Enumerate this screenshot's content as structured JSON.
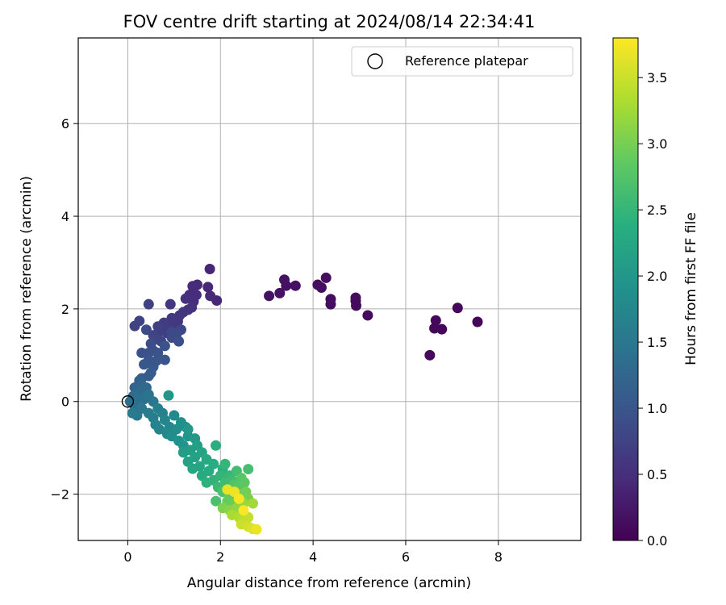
{
  "chart_data": {
    "type": "scatter",
    "title": "FOV centre drift starting at 2024/08/14 22:34:41",
    "xlabel": "Angular distance from reference (arcmin)",
    "ylabel": "Rotation from reference (arcmin)",
    "xlim": [
      -1.07,
      9.78
    ],
    "ylim": [
      -3.0,
      7.85
    ],
    "xticks": [
      0,
      2,
      4,
      6,
      8
    ],
    "yticks": [
      -2,
      0,
      2,
      4,
      6
    ],
    "xtick_labels": [
      "0",
      "2",
      "4",
      "6",
      "8"
    ],
    "ytick_labels": [
      "−2",
      "0",
      "2",
      "4",
      "6"
    ],
    "grid": true,
    "legend": {
      "placement": "top-right",
      "label": "Reference platepar"
    },
    "reference_point": {
      "x": 0,
      "y": 0
    },
    "colorbar": {
      "label": "Hours from first FF file",
      "range": [
        0,
        3.8
      ],
      "ticks": [
        0.0,
        0.5,
        1.0,
        1.5,
        2.0,
        2.5,
        3.0,
        3.5
      ],
      "tick_labels": [
        "0.0",
        "0.5",
        "1.0",
        "1.5",
        "2.0",
        "2.5",
        "3.0",
        "3.5"
      ],
      "colormap": "viridis"
    },
    "points": [
      [
        7.55,
        1.72,
        0.05
      ],
      [
        7.12,
        2.02,
        0.06
      ],
      [
        6.78,
        1.56,
        0.06
      ],
      [
        6.62,
        1.58,
        0.07
      ],
      [
        6.65,
        1.75,
        0.07
      ],
      [
        6.52,
        1.0,
        0.08
      ],
      [
        5.18,
        1.86,
        0.1
      ],
      [
        4.93,
        2.07,
        0.11
      ],
      [
        4.92,
        2.24,
        0.11
      ],
      [
        4.92,
        2.17,
        0.12
      ],
      [
        4.38,
        2.1,
        0.13
      ],
      [
        4.38,
        2.21,
        0.13
      ],
      [
        4.28,
        2.67,
        0.14
      ],
      [
        4.18,
        2.46,
        0.14
      ],
      [
        4.1,
        2.52,
        0.15
      ],
      [
        3.62,
        2.5,
        0.16
      ],
      [
        3.42,
        2.5,
        0.16
      ],
      [
        3.38,
        2.63,
        0.17
      ],
      [
        3.28,
        2.34,
        0.17
      ],
      [
        3.05,
        2.28,
        0.18
      ],
      [
        1.77,
        2.86,
        0.4
      ],
      [
        1.92,
        2.18,
        0.42
      ],
      [
        1.73,
        2.47,
        0.43
      ],
      [
        1.78,
        2.28,
        0.44
      ],
      [
        1.5,
        2.52,
        0.45
      ],
      [
        1.4,
        2.49,
        0.46
      ],
      [
        1.33,
        2.3,
        0.47
      ],
      [
        1.48,
        2.3,
        0.48
      ],
      [
        1.42,
        2.16,
        0.5
      ],
      [
        1.38,
        2.03,
        0.52
      ],
      [
        1.25,
        2.22,
        0.53
      ],
      [
        1.3,
        1.98,
        0.55
      ],
      [
        1.2,
        1.93,
        0.56
      ],
      [
        1.12,
        1.86,
        0.58
      ],
      [
        1.08,
        1.73,
        0.6
      ],
      [
        0.92,
        2.1,
        0.6
      ],
      [
        1.02,
        1.68,
        0.62
      ],
      [
        0.95,
        1.8,
        0.63
      ],
      [
        0.88,
        1.63,
        0.65
      ],
      [
        0.85,
        1.48,
        0.67
      ],
      [
        0.78,
        1.7,
        0.68
      ],
      [
        0.72,
        1.52,
        0.7
      ],
      [
        0.65,
        1.62,
        0.72
      ],
      [
        0.45,
        2.1,
        0.72
      ],
      [
        0.25,
        1.74,
        0.74
      ],
      [
        0.15,
        1.63,
        0.75
      ],
      [
        0.55,
        1.43,
        0.76
      ],
      [
        0.62,
        1.35,
        0.78
      ],
      [
        0.72,
        1.3,
        0.8
      ],
      [
        1.15,
        1.55,
        0.82
      ],
      [
        1.05,
        1.45,
        0.84
      ],
      [
        0.95,
        1.38,
        0.85
      ],
      [
        0.4,
        1.55,
        0.86
      ],
      [
        0.5,
        1.25,
        0.88
      ],
      [
        0.55,
        1.1,
        0.9
      ],
      [
        0.45,
        1.05,
        0.92
      ],
      [
        0.3,
        1.05,
        0.94
      ],
      [
        0.8,
        1.2,
        0.95
      ],
      [
        0.65,
        1.05,
        0.97
      ],
      [
        0.45,
        0.9,
        1.0
      ],
      [
        0.35,
        0.8,
        1.03
      ],
      [
        0.55,
        0.75,
        1.05
      ],
      [
        0.5,
        0.62,
        1.08
      ],
      [
        0.45,
        0.55,
        1.1
      ],
      [
        0.3,
        0.5,
        1.12
      ],
      [
        0.95,
        1.5,
        0.85
      ],
      [
        1.1,
        1.3,
        0.9
      ],
      [
        0.8,
        0.9,
        1.0
      ],
      [
        0.62,
        0.88,
        1.02
      ],
      [
        0.25,
        0.45,
        1.18
      ],
      [
        0.15,
        0.3,
        1.22
      ],
      [
        0.3,
        0.35,
        1.25
      ],
      [
        0.4,
        0.3,
        1.28
      ],
      [
        0.25,
        0.2,
        1.3
      ],
      [
        0.12,
        0.12,
        1.33
      ],
      [
        0.05,
        0.0,
        1.35
      ],
      [
        0.2,
        0.05,
        1.38
      ],
      [
        0.15,
        -0.1,
        1.4
      ],
      [
        0.35,
        0.05,
        1.42
      ],
      [
        0.45,
        0.15,
        1.45
      ],
      [
        0.55,
        0.0,
        1.47
      ],
      [
        0.3,
        -0.15,
        1.5
      ],
      [
        0.2,
        -0.3,
        1.52
      ],
      [
        0.1,
        -0.25,
        1.55
      ],
      [
        0.45,
        -0.25,
        1.57
      ],
      [
        0.55,
        -0.35,
        1.6
      ],
      [
        0.65,
        -0.15,
        1.62
      ],
      [
        0.75,
        -0.25,
        1.65
      ],
      [
        0.6,
        -0.5,
        1.68
      ],
      [
        0.68,
        -0.6,
        1.7
      ],
      [
        0.8,
        -0.4,
        1.72
      ],
      [
        0.9,
        -0.55,
        1.75
      ],
      [
        1.0,
        -0.3,
        1.77
      ],
      [
        0.85,
        -0.7,
        1.8
      ],
      [
        0.95,
        -0.75,
        1.82
      ],
      [
        1.05,
        -0.6,
        1.85
      ],
      [
        1.15,
        -0.45,
        1.87
      ],
      [
        1.25,
        -0.55,
        1.9
      ],
      [
        1.1,
        -0.85,
        1.92
      ],
      [
        1.2,
        -0.95,
        1.95
      ],
      [
        1.3,
        -0.75,
        1.97
      ],
      [
        0.88,
        0.13,
        2.0
      ],
      [
        1.3,
        -0.6,
        2.02
      ],
      [
        1.45,
        -0.8,
        2.05
      ],
      [
        1.2,
        -1.1,
        2.08
      ],
      [
        1.35,
        -1.05,
        2.1
      ],
      [
        1.5,
        -0.95,
        2.12
      ],
      [
        1.3,
        -1.3,
        2.15
      ],
      [
        1.45,
        -1.2,
        2.18
      ],
      [
        1.6,
        -1.1,
        2.2
      ],
      [
        1.4,
        -1.45,
        2.22
      ],
      [
        1.55,
        -1.4,
        2.25
      ],
      [
        1.7,
        -1.25,
        2.28
      ],
      [
        1.6,
        -1.6,
        2.3
      ],
      [
        1.75,
        -1.5,
        2.32
      ],
      [
        1.85,
        -1.35,
        2.35
      ],
      [
        1.9,
        -0.95,
        2.38
      ],
      [
        2.05,
        -1.45,
        2.4
      ],
      [
        1.7,
        -1.75,
        2.42
      ],
      [
        1.85,
        -1.7,
        2.45
      ],
      [
        2.0,
        -1.6,
        2.48
      ],
      [
        2.1,
        -1.35,
        2.5
      ],
      [
        2.2,
        -1.6,
        2.52
      ],
      [
        1.95,
        -1.85,
        2.55
      ],
      [
        2.1,
        -1.75,
        2.58
      ],
      [
        2.25,
        -1.7,
        2.6
      ],
      [
        2.35,
        -1.5,
        2.62
      ],
      [
        2.6,
        -1.46,
        2.65
      ],
      [
        1.9,
        -2.15,
        2.68
      ],
      [
        2.05,
        -1.95,
        2.7
      ],
      [
        2.15,
        -1.9,
        2.72
      ],
      [
        2.3,
        -1.8,
        2.75
      ],
      [
        2.45,
        -1.65,
        2.78
      ],
      [
        2.4,
        -1.85,
        2.8
      ],
      [
        2.52,
        -1.75,
        2.82
      ],
      [
        2.2,
        -2.0,
        2.85
      ],
      [
        2.35,
        -2.05,
        2.88
      ],
      [
        2.15,
        -2.15,
        2.9
      ],
      [
        2.28,
        -2.2,
        2.92
      ],
      [
        2.45,
        -2.0,
        2.95
      ],
      [
        2.55,
        -1.95,
        2.98
      ],
      [
        2.6,
        -2.1,
        3.0
      ],
      [
        2.05,
        -2.3,
        3.05
      ],
      [
        2.2,
        -2.35,
        3.1
      ],
      [
        2.35,
        -2.3,
        3.15
      ],
      [
        2.5,
        -2.2,
        3.2
      ],
      [
        2.7,
        -2.2,
        3.25
      ],
      [
        2.25,
        -2.45,
        3.3
      ],
      [
        2.4,
        -2.5,
        3.35
      ],
      [
        2.5,
        -2.55,
        3.4
      ],
      [
        2.6,
        -2.5,
        3.45
      ],
      [
        2.45,
        -2.65,
        3.5
      ],
      [
        2.6,
        -2.7,
        3.55
      ],
      [
        2.7,
        -2.75,
        3.6
      ],
      [
        2.78,
        -2.76,
        3.7
      ],
      [
        2.15,
        -1.9,
        3.65
      ],
      [
        2.3,
        -1.95,
        3.7
      ],
      [
        2.4,
        -2.1,
        3.75
      ],
      [
        2.5,
        -2.35,
        3.78
      ]
    ]
  }
}
